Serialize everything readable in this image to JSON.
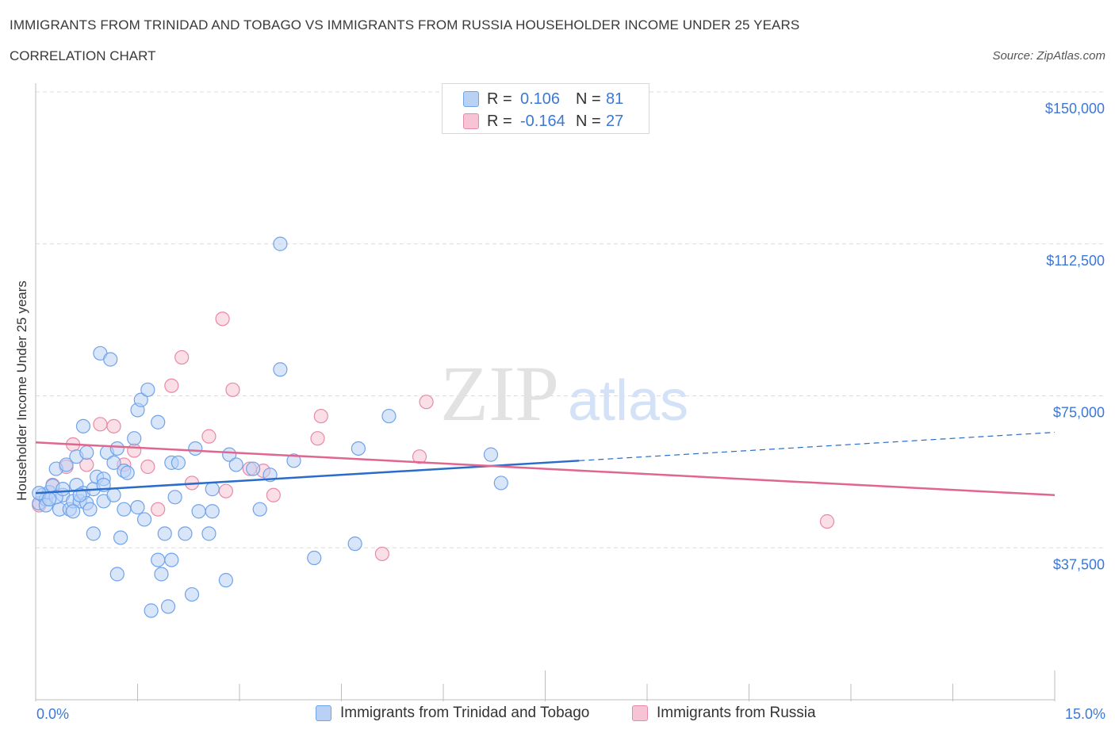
{
  "header": {
    "title": "IMMIGRANTS FROM TRINIDAD AND TOBAGO VS IMMIGRANTS FROM RUSSIA HOUSEHOLDER INCOME UNDER 25 YEARS",
    "subtitle": "CORRELATION CHART",
    "source": "Source: ZipAtlas.com"
  },
  "watermark": {
    "zip": "ZIP",
    "atlas": "atlas"
  },
  "legend": {
    "rows": [
      {
        "r_label": "R =",
        "r_value": "0.106",
        "n_label": "N =",
        "n_value": "81"
      },
      {
        "r_label": "R =",
        "r_value": "-0.164",
        "n_label": "N =",
        "n_value": "27"
      }
    ]
  },
  "chart_data": {
    "type": "scatter",
    "title": "IMMIGRANTS FROM TRINIDAD AND TOBAGO VS IMMIGRANTS FROM RUSSIA HOUSEHOLDER INCOME UNDER 25 YEARS",
    "subtitle": "CORRELATION CHART",
    "xlabel": "",
    "ylabel": "Householder Income Under 25 years",
    "xlim": [
      0,
      15
    ],
    "ylim": [
      0,
      150000
    ],
    "x_tick_labels": [
      "0.0%",
      "15.0%"
    ],
    "y_tick_labels": [
      "$150,000",
      "$112,500",
      "$75,000",
      "$37,500"
    ],
    "y_ticks": [
      150000,
      112500,
      75000,
      37500
    ],
    "grid": true,
    "legend_position": "top-center",
    "series": [
      {
        "name": "Immigrants from Trinidad and Tobago",
        "color": "#6fa3ea",
        "fill": "#b9d1f5",
        "line_color": "#2a6cc9",
        "trend": {
          "x0": 0.0,
          "y0": 51000,
          "x1": 8.0,
          "y1": 59000,
          "dash_to_x": 15.0,
          "dash_to_y": 66000
        },
        "points": [
          [
            0.05,
            48500
          ],
          [
            0.1,
            50500
          ],
          [
            0.15,
            49500
          ],
          [
            0.2,
            51200
          ],
          [
            0.25,
            52800
          ],
          [
            0.3,
            57000
          ],
          [
            0.35,
            47000
          ],
          [
            0.4,
            50500
          ],
          [
            0.45,
            58000
          ],
          [
            0.5,
            47000
          ],
          [
            0.55,
            49000
          ],
          [
            0.6,
            60000
          ],
          [
            0.6,
            53000
          ],
          [
            0.65,
            49000
          ],
          [
            0.7,
            51000
          ],
          [
            0.7,
            67500
          ],
          [
            0.75,
            48500
          ],
          [
            0.75,
            61000
          ],
          [
            0.8,
            47000
          ],
          [
            0.85,
            41000
          ],
          [
            0.85,
            52000
          ],
          [
            0.9,
            55000
          ],
          [
            0.95,
            85500
          ],
          [
            1.0,
            49000
          ],
          [
            1.0,
            54500
          ],
          [
            1.05,
            61000
          ],
          [
            1.1,
            84000
          ],
          [
            1.15,
            58500
          ],
          [
            1.15,
            50500
          ],
          [
            1.2,
            62000
          ],
          [
            1.2,
            31000
          ],
          [
            1.25,
            40000
          ],
          [
            1.3,
            47000
          ],
          [
            1.3,
            56500
          ],
          [
            1.35,
            56000
          ],
          [
            1.45,
            64500
          ],
          [
            1.5,
            71500
          ],
          [
            1.5,
            47500
          ],
          [
            1.55,
            74000
          ],
          [
            1.6,
            44500
          ],
          [
            1.65,
            76500
          ],
          [
            1.7,
            22000
          ],
          [
            1.8,
            34500
          ],
          [
            1.8,
            68500
          ],
          [
            1.85,
            31000
          ],
          [
            1.9,
            41000
          ],
          [
            1.95,
            23000
          ],
          [
            2.0,
            58500
          ],
          [
            2.0,
            34500
          ],
          [
            2.05,
            50000
          ],
          [
            2.1,
            58500
          ],
          [
            2.2,
            41000
          ],
          [
            2.3,
            26000
          ],
          [
            2.35,
            62000
          ],
          [
            2.4,
            46500
          ],
          [
            2.55,
            41000
          ],
          [
            2.6,
            52000
          ],
          [
            2.6,
            46500
          ],
          [
            2.8,
            29500
          ],
          [
            2.85,
            60500
          ],
          [
            2.95,
            58000
          ],
          [
            3.2,
            57000
          ],
          [
            3.3,
            47000
          ],
          [
            3.45,
            55500
          ],
          [
            3.6,
            112500
          ],
          [
            3.6,
            81500
          ],
          [
            3.8,
            59000
          ],
          [
            4.1,
            35000
          ],
          [
            4.7,
            38500
          ],
          [
            4.75,
            62000
          ],
          [
            5.2,
            70000
          ],
          [
            6.7,
            60500
          ],
          [
            6.85,
            53500
          ],
          [
            0.05,
            51000
          ],
          [
            0.15,
            48000
          ],
          [
            0.3,
            50000
          ],
          [
            0.4,
            52000
          ],
          [
            0.55,
            46500
          ],
          [
            0.65,
            50500
          ],
          [
            1.0,
            53000
          ],
          [
            0.2,
            49500
          ]
        ]
      },
      {
        "name": "Immigrants from Russia",
        "color": "#e889a8",
        "fill": "#f6c4d4",
        "line_color": "#e0668f",
        "trend": {
          "x0": 0.0,
          "y0": 63500,
          "x1": 15.0,
          "y1": 50500
        },
        "points": [
          [
            0.05,
            48000
          ],
          [
            0.25,
            53000
          ],
          [
            0.45,
            57500
          ],
          [
            0.55,
            63000
          ],
          [
            0.75,
            58000
          ],
          [
            0.95,
            68000
          ],
          [
            1.15,
            67500
          ],
          [
            1.3,
            58000
          ],
          [
            1.45,
            61500
          ],
          [
            1.65,
            57500
          ],
          [
            1.8,
            47000
          ],
          [
            2.0,
            77500
          ],
          [
            2.15,
            84500
          ],
          [
            2.3,
            53500
          ],
          [
            2.55,
            65000
          ],
          [
            2.75,
            94000
          ],
          [
            2.8,
            51500
          ],
          [
            2.9,
            76500
          ],
          [
            3.15,
            57000
          ],
          [
            3.35,
            56500
          ],
          [
            3.5,
            50500
          ],
          [
            4.15,
            64500
          ],
          [
            4.2,
            70000
          ],
          [
            5.1,
            36000
          ],
          [
            5.65,
            60000
          ],
          [
            5.75,
            73500
          ],
          [
            11.65,
            44000
          ]
        ]
      }
    ]
  }
}
